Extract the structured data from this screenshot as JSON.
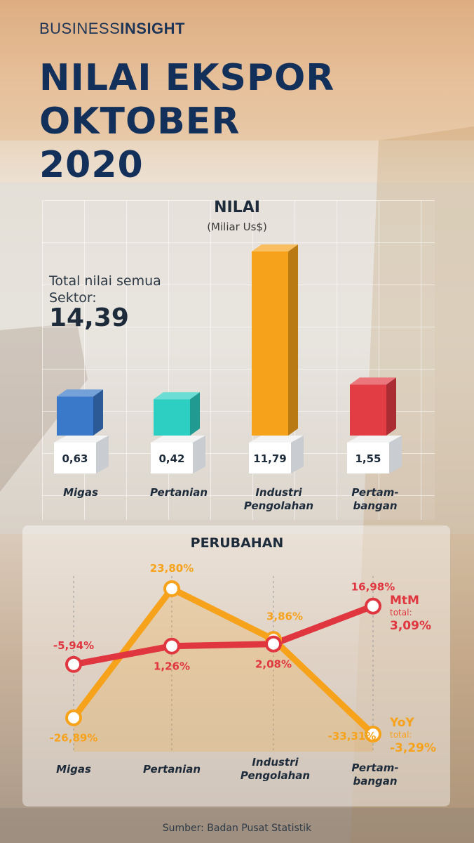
{
  "brand": {
    "part1": "BUSINESS",
    "part2": "INSIGHT"
  },
  "title_lines": [
    "NILAI EKSPOR",
    "OKTOBER",
    "2020"
  ],
  "nilai": {
    "title": "NILAI",
    "unit": "(Miliar Us$)"
  },
  "total": {
    "label": "Total nilai semua Sektor:",
    "value": "14,39"
  },
  "perubahan": {
    "title": "PERUBAHAN"
  },
  "mtm": {
    "name": "MtM",
    "total_label": "total:",
    "total_value": "3,09%"
  },
  "yoy": {
    "name": "YoY",
    "total_label": "total:",
    "total_value": "-3,29%"
  },
  "source": "Sumber: Badan Pusat Statistik",
  "colors": {
    "migas": "#3a78c9",
    "pertanian": "#2ccfc2",
    "industri": "#f7a21b",
    "pertambangan": "#e23c45",
    "mtm": "#e0363f",
    "yoy": "#f7a21b",
    "navy": "#13305a"
  },
  "chart_data": [
    {
      "type": "bar",
      "title": "NILAI",
      "ylabel": "(Miliar Us$)",
      "categories": [
        "Migas",
        "Pertanian",
        "Industri Pengolahan",
        "Pertam-bangan"
      ],
      "category_lines": [
        [
          "Migas"
        ],
        [
          "Pertanian"
        ],
        [
          "Industri",
          "Pengolahan"
        ],
        [
          "Pertam-",
          "bangan"
        ]
      ],
      "values": [
        0.63,
        0.42,
        11.79,
        1.55
      ],
      "value_labels": [
        "0,63",
        "0,42",
        "11,79",
        "1,55"
      ]
    },
    {
      "type": "line",
      "title": "PERUBAHAN",
      "categories": [
        "Migas",
        "Pertanian",
        "Industri Pengolahan",
        "Pertam-bangan"
      ],
      "category_lines": [
        [
          "Migas"
        ],
        [
          "Pertanian"
        ],
        [
          "Industri",
          "Pengolahan"
        ],
        [
          "Pertam-",
          "bangan"
        ]
      ],
      "unit": "%",
      "series": [
        {
          "name": "MtM",
          "values": [
            -5.94,
            1.26,
            2.08,
            16.98
          ],
          "labels": [
            "-5,94%",
            "1,26%",
            "2,08%",
            "16,98%"
          ]
        },
        {
          "name": "YoY",
          "values": [
            -26.89,
            23.8,
            3.86,
            -33.31
          ],
          "labels": [
            "-26,89%",
            "23,80%",
            "3,86%",
            "-33,31%"
          ]
        }
      ]
    }
  ]
}
